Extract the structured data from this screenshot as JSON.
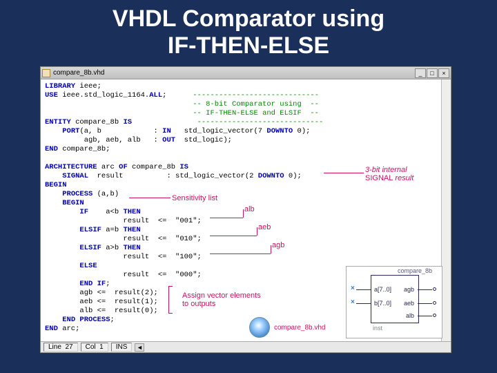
{
  "slide": {
    "title_line1": "VHDL Comparator using",
    "title_line2": "IF-THEN-ELSE",
    "background": "#1a2f5a"
  },
  "window": {
    "title": "compare_8b.vhd",
    "buttons": {
      "min": "_",
      "max": "□",
      "close": "×"
    }
  },
  "statusbar": {
    "line_label": "Line",
    "line_val": "27",
    "col_label": "Col",
    "col_val": "1",
    "mode": "INS"
  },
  "code": {
    "lines": [
      {
        "t": [
          [
            "kw",
            "LIBRARY"
          ],
          [
            "",
            ""
          ],
          [
            "ident",
            " ieee;"
          ]
        ]
      },
      {
        "t": [
          [
            "kw",
            "USE"
          ],
          [
            "ident",
            " ieee.std_logic_1164."
          ],
          [
            "kw",
            "ALL"
          ],
          [
            "ident",
            ";"
          ],
          [
            "sp",
            "      "
          ],
          [
            "cmt",
            "-----------------------------"
          ]
        ]
      },
      {
        "t": [
          [
            "sp",
            "                                  "
          ],
          [
            "cmt",
            "-- 8-bit Comparator using  --"
          ]
        ]
      },
      {
        "t": [
          [
            "sp",
            "                                  "
          ],
          [
            "cmt",
            "-- IF-THEN-ELSE and ELSIF  --"
          ]
        ]
      },
      {
        "t": [
          [
            "kw",
            "ENTITY"
          ],
          [
            "ident",
            " compare_8b "
          ],
          [
            "kw",
            "IS"
          ],
          [
            "sp",
            "               "
          ],
          [
            "cmt",
            "-----------------------------"
          ]
        ]
      },
      {
        "t": [
          [
            "sp",
            "    "
          ],
          [
            "kw",
            "PORT"
          ],
          [
            "ident",
            "(a, b            : "
          ],
          [
            "kw",
            "IN"
          ],
          [
            "ident",
            "   std_logic_vector(7 "
          ],
          [
            "kw",
            "DOWNTO"
          ],
          [
            "ident",
            " 0);"
          ]
        ]
      },
      {
        "t": [
          [
            "ident",
            "         agb, aeb, alb   : "
          ],
          [
            "kw",
            "OUT"
          ],
          [
            "ident",
            "  std_logic);"
          ]
        ]
      },
      {
        "t": [
          [
            "kw",
            "END"
          ],
          [
            "ident",
            " compare_8b;"
          ]
        ]
      },
      {
        "t": [
          [
            "",
            ""
          ]
        ]
      },
      {
        "t": [
          [
            "kw",
            "ARCHITECTURE"
          ],
          [
            "ident",
            " arc "
          ],
          [
            "kw",
            "OF"
          ],
          [
            "ident",
            " compare_8b "
          ],
          [
            "kw",
            "IS"
          ]
        ]
      },
      {
        "t": [
          [
            "sp",
            "    "
          ],
          [
            "kw",
            "SIGNAL"
          ],
          [
            "ident",
            "  result          : std_logic_vector(2 "
          ],
          [
            "kw",
            "DOWNTO"
          ],
          [
            "ident",
            " 0);"
          ]
        ]
      },
      {
        "t": [
          [
            "kw",
            "BEGIN"
          ]
        ]
      },
      {
        "t": [
          [
            "sp",
            "    "
          ],
          [
            "kw",
            "PROCESS"
          ],
          [
            "ident",
            " (a,b)"
          ]
        ]
      },
      {
        "t": [
          [
            "sp",
            "    "
          ],
          [
            "kw",
            "BEGIN"
          ]
        ]
      },
      {
        "t": [
          [
            "sp",
            "        "
          ],
          [
            "kw",
            "IF"
          ],
          [
            "ident",
            "    a<b "
          ],
          [
            "kw",
            "THEN"
          ]
        ]
      },
      {
        "t": [
          [
            "sp",
            "                  "
          ],
          [
            "ident",
            "result  <=  \"001\";"
          ]
        ]
      },
      {
        "t": [
          [
            "sp",
            "        "
          ],
          [
            "kw",
            "ELSIF"
          ],
          [
            "ident",
            " a=b "
          ],
          [
            "kw",
            "THEN"
          ]
        ]
      },
      {
        "t": [
          [
            "sp",
            "                  "
          ],
          [
            "ident",
            "result  <=  \"010\";"
          ]
        ]
      },
      {
        "t": [
          [
            "sp",
            "        "
          ],
          [
            "kw",
            "ELSIF"
          ],
          [
            "ident",
            " a>b "
          ],
          [
            "kw",
            "THEN"
          ]
        ]
      },
      {
        "t": [
          [
            "sp",
            "                  "
          ],
          [
            "ident",
            "result  <=  \"100\";"
          ]
        ]
      },
      {
        "t": [
          [
            "sp",
            "        "
          ],
          [
            "kw",
            "ELSE"
          ]
        ]
      },
      {
        "t": [
          [
            "sp",
            "                  "
          ],
          [
            "ident",
            "result  <=  \"000\";"
          ]
        ]
      },
      {
        "t": [
          [
            "sp",
            "        "
          ],
          [
            "kw",
            "END IF"
          ],
          [
            "ident",
            ";"
          ]
        ]
      },
      {
        "t": [
          [
            "sp",
            "        "
          ],
          [
            "ident",
            "agb <=  result(2);"
          ]
        ]
      },
      {
        "t": [
          [
            "sp",
            "        "
          ],
          [
            "ident",
            "aeb <=  result(1);"
          ]
        ]
      },
      {
        "t": [
          [
            "sp",
            "        "
          ],
          [
            "ident",
            "alb <=  result(0);"
          ]
        ]
      },
      {
        "t": [
          [
            "sp",
            "    "
          ],
          [
            "kw",
            "END PROCESS"
          ],
          [
            "ident",
            ";"
          ]
        ]
      },
      {
        "t": [
          [
            "kw",
            "END"
          ],
          [
            "ident",
            " arc;"
          ]
        ]
      }
    ]
  },
  "annotations": {
    "sens": "Sensitivity list",
    "alb": "alb",
    "aeb": "aeb",
    "agb": "agb",
    "internal1": "3-bit internal",
    "internal2": "SIGNAL result",
    "assign": "Assign vector elements",
    "assign2": "to outputs",
    "disc_label": "compare_8b.vhd"
  },
  "diagram": {
    "title": "compare_8b",
    "inst": "inst",
    "in1": "a[7..0]",
    "in2": "b[7..0]",
    "out1": "agb",
    "out2": "aeb",
    "out3": "alb"
  }
}
